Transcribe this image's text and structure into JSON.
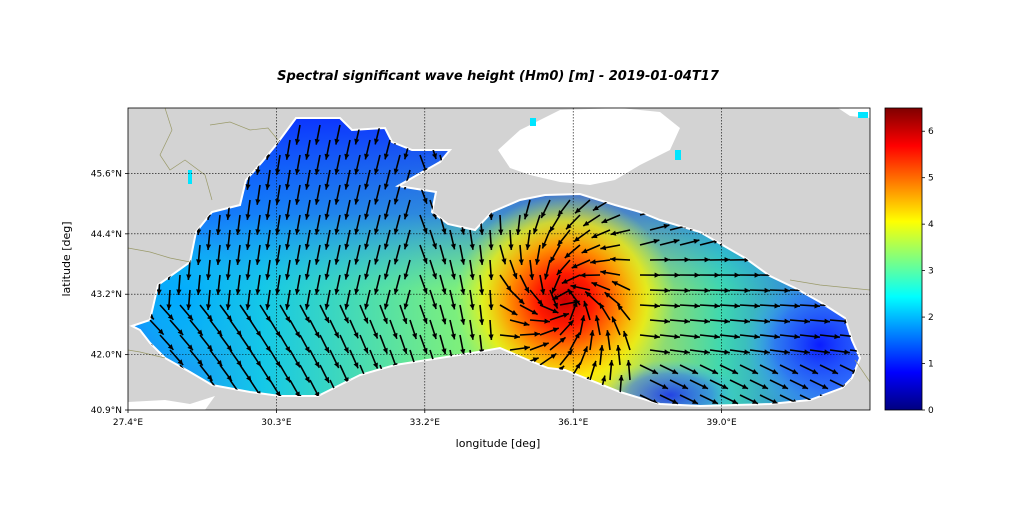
{
  "chart_data": {
    "type": "heatmap",
    "title": "Spectral significant wave height (Hm0) [m] - 2019-01-04T17",
    "xlabel": "longitude [deg]",
    "ylabel": "latitude [deg]",
    "x_ticks": [
      "27.4°E",
      "30.3°E",
      "33.2°E",
      "36.1°E",
      "39.0°E"
    ],
    "x_tick_values": [
      27.4,
      30.3,
      33.2,
      36.1,
      39.0
    ],
    "y_ticks": [
      "45.6°N",
      "44.4°N",
      "43.2°N",
      "42.0°N",
      "40.9°N"
    ],
    "y_tick_values": [
      45.6,
      44.4,
      43.2,
      42.0,
      40.9
    ],
    "xlim": [
      27.4,
      41.9
    ],
    "ylim": [
      40.9,
      46.9
    ],
    "colorbar": {
      "min": 0,
      "max": 6.5,
      "ticks": [
        "0",
        "1",
        "2",
        "3",
        "4",
        "5",
        "6"
      ],
      "colormap": "jet"
    },
    "grid": true,
    "grid_style": "dotted",
    "land_color": "#d3d3d3",
    "wave_height_peak": {
      "lon": 35.8,
      "lat": 42.9,
      "value_m": 6.4
    },
    "wave_height_range_m": [
      0.8,
      6.4
    ]
  }
}
